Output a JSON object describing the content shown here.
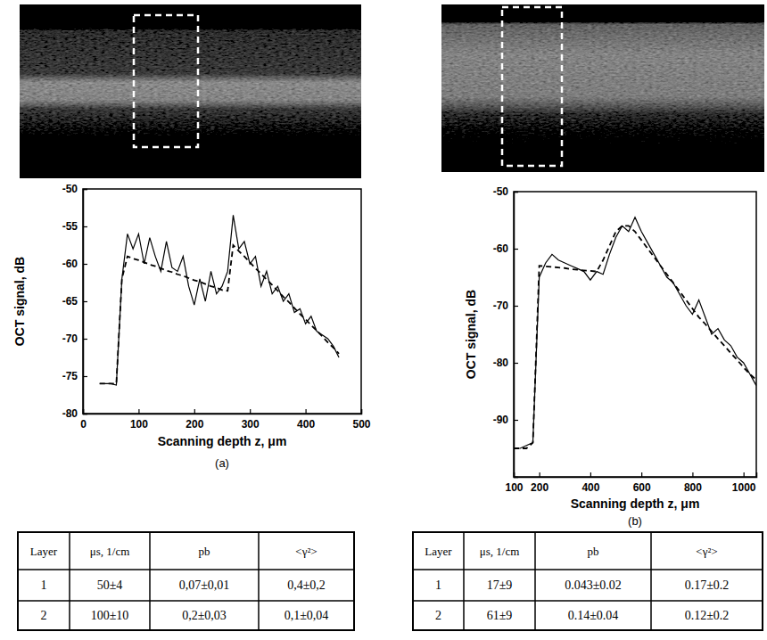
{
  "chart_data": [
    {
      "type": "line",
      "panel": "(a)",
      "x_label": "Scanning depth z, μm",
      "y_label": "OCT signal, dB",
      "xlim": [
        0,
        500
      ],
      "ylim": [
        -80,
        -50
      ],
      "xticks": [
        0,
        100,
        200,
        300,
        400,
        500
      ],
      "yticks": [
        -80,
        -75,
        -70,
        -65,
        -60,
        -55,
        -50
      ],
      "x": [
        30,
        40,
        50,
        60,
        70,
        80,
        90,
        100,
        110,
        120,
        130,
        140,
        150,
        160,
        170,
        180,
        190,
        200,
        210,
        220,
        230,
        240,
        250,
        260,
        270,
        280,
        290,
        300,
        310,
        320,
        330,
        340,
        350,
        360,
        370,
        380,
        390,
        400,
        410,
        420,
        430,
        440,
        450,
        460
      ],
      "series": [
        {
          "color": "#000000",
          "line_style": "solid",
          "values": [
            -76,
            -76,
            -76,
            -76.2,
            -62,
            -56,
            -58,
            -56,
            -60,
            -56.5,
            -59,
            -61,
            -57,
            -60.5,
            -61,
            -59,
            -63,
            -65.5,
            -62,
            -65,
            -61,
            -64,
            -63,
            -61,
            -53.5,
            -58,
            -57,
            -60,
            -59,
            -63,
            -61,
            -64,
            -63,
            -65,
            -64,
            -66.5,
            -66,
            -68,
            -67,
            -69,
            -69.5,
            -70,
            -71,
            -72.5
          ]
        },
        {
          "color": "#000000",
          "line_style": "dashed",
          "values": [
            -76,
            -76,
            -76,
            -76,
            -62,
            -59,
            -59.3,
            -59.5,
            -59.8,
            -60.1,
            -60.3,
            -60.6,
            -60.9,
            -61.1,
            -61.4,
            -61.6,
            -61.9,
            -62.2,
            -62.4,
            -62.7,
            -63,
            -63.2,
            -63.5,
            -63.6,
            -57.5,
            -58.3,
            -59,
            -59.8,
            -60.6,
            -61.3,
            -62.1,
            -62.8,
            -63.6,
            -64.4,
            -65.1,
            -65.9,
            -66.7,
            -67.4,
            -68.2,
            -68.9,
            -69.7,
            -70.5,
            -71.2,
            -72
          ]
        }
      ]
    },
    {
      "type": "line",
      "panel": "(b)",
      "x_label": "Scanning depth z, μm",
      "y_label": "OCT signal, dB",
      "xlim": [
        100,
        1050
      ],
      "ylim": [
        -100,
        -50
      ],
      "xticks": [
        100,
        200,
        400,
        600,
        800,
        1000
      ],
      "yticks": [
        -90,
        -80,
        -70,
        -60,
        -50
      ],
      "x": [
        100,
        125,
        150,
        175,
        200,
        225,
        250,
        275,
        300,
        325,
        350,
        375,
        400,
        425,
        450,
        475,
        500,
        525,
        550,
        575,
        600,
        625,
        650,
        675,
        700,
        725,
        750,
        775,
        800,
        825,
        850,
        875,
        900,
        925,
        950,
        975,
        1000,
        1025,
        1050
      ],
      "series": [
        {
          "color": "#000000",
          "line_style": "solid",
          "values": [
            -95,
            -95,
            -94.5,
            -94,
            -65,
            -62.5,
            -61,
            -62,
            -62.5,
            -63,
            -63.5,
            -64,
            -65.5,
            -64,
            -64.5,
            -61,
            -58,
            -56,
            -57,
            -54.5,
            -57,
            -59,
            -61,
            -63,
            -65,
            -66,
            -68,
            -70,
            -71.5,
            -69,
            -72,
            -75,
            -74,
            -76,
            -77,
            -79,
            -80,
            -82,
            -84
          ]
        },
        {
          "color": "#000000",
          "line_style": "dashed",
          "values": [
            -95,
            -95,
            -95,
            -94,
            -63,
            -63.1,
            -63.2,
            -63.3,
            -63.4,
            -63.6,
            -63.7,
            -63.8,
            -63.9,
            -64,
            -62,
            -59.5,
            -57,
            -56,
            -56,
            -57,
            -58.5,
            -60,
            -61.5,
            -63,
            -64.5,
            -66,
            -67.5,
            -69,
            -70.5,
            -72,
            -73.2,
            -74.5,
            -75.8,
            -77,
            -78.3,
            -79.5,
            -80.8,
            -82,
            -83
          ]
        }
      ]
    }
  ],
  "tables": [
    {
      "columns": [
        "Layer",
        "μs, 1/cm",
        "pb",
        "<γ²>"
      ],
      "rows": [
        [
          "1",
          "50±4",
          "0,07±0,01",
          "0,4±0,2"
        ],
        [
          "2",
          "100±10",
          "0,2±0,03",
          "0,1±0,04"
        ]
      ]
    },
    {
      "columns": [
        "Layer",
        "μs, 1/cm",
        "pb",
        "<γ²>"
      ],
      "rows": [
        [
          "1",
          "17±9",
          "0.043±0.02",
          "0.17±0.2"
        ],
        [
          "2",
          "61±9",
          "0.14±0.04",
          "0.12±0.2"
        ]
      ]
    }
  ]
}
